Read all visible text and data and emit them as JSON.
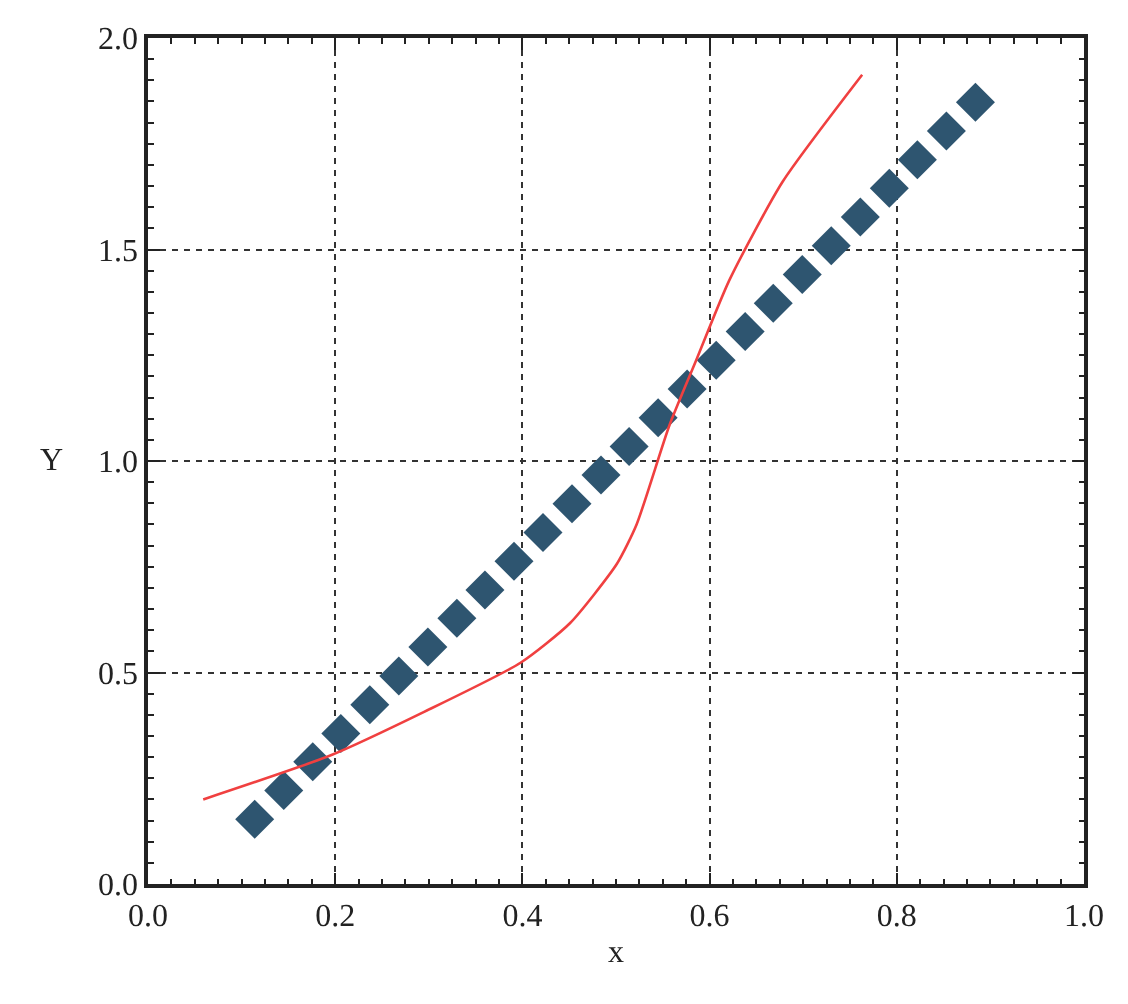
{
  "chart_data": {
    "type": "scatter",
    "xlabel": "x",
    "ylabel": "Y",
    "xlim": [
      0.0,
      1.0
    ],
    "xticks": [
      {
        "value": 0,
        "label": "0.0"
      },
      0.2,
      0.4,
      0.6,
      0.8,
      {
        "value": 1,
        "label": "1.0"
      }
    ],
    "ylim": [
      0.0,
      2.0
    ],
    "yticks": [
      {
        "value": 0,
        "label": "0.0"
      },
      0.5,
      {
        "value": 1,
        "label": "1.0"
      },
      1.5,
      {
        "value": 2,
        "label": "2.0"
      }
    ],
    "grid": true,
    "legend": false,
    "series": [
      {
        "marker": "diamond",
        "color": "#2e5570",
        "x": [
          0.114,
          0.145,
          0.176,
          0.206,
          0.237,
          0.268,
          0.299,
          0.33,
          0.36,
          0.391,
          0.422,
          0.453,
          0.484,
          0.514,
          0.545,
          0.576,
          0.607,
          0.638,
          0.668,
          0.699,
          0.73,
          0.761,
          0.792,
          0.822,
          0.853,
          0.884
        ],
        "values": [
          0.153,
          0.221,
          0.289,
          0.356,
          0.424,
          0.492,
          0.56,
          0.628,
          0.695,
          0.763,
          0.831,
          0.899,
          0.967,
          1.034,
          1.102,
          1.17,
          1.238,
          1.306,
          1.373,
          1.441,
          1.509,
          1.577,
          1.645,
          1.712,
          1.78,
          1.848
        ]
      },
      {
        "type": "line",
        "marker": "none",
        "line_style": "solid",
        "color": "#f04040",
        "x": [
          0.059,
          0.196,
          0.295,
          0.398,
          0.451,
          0.501,
          0.522,
          0.557,
          0.586,
          0.621,
          0.678,
          0.763
        ],
        "values": [
          0.2,
          0.305,
          0.407,
          0.523,
          0.617,
          0.757,
          0.85,
          1.084,
          1.24,
          1.427,
          1.66,
          1.913
        ]
      }
    ]
  }
}
